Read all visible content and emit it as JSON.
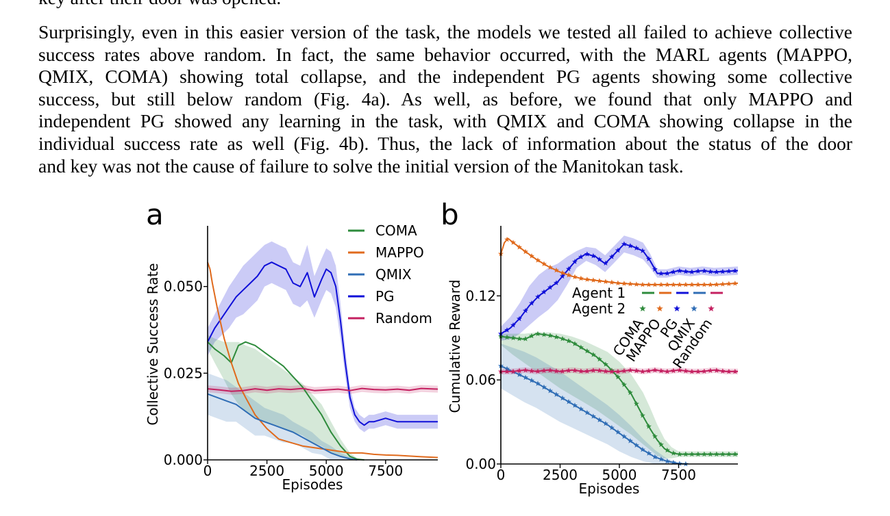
{
  "cut_line": "key after their door was opened.",
  "paragraph": [
    "Surprisingly, even in this easier version of the task, the models we tested all failed to achieve collective",
    "success rates above random. In fact, the same behavior occurred, with the MARL agents (MAPPO,",
    "QMIX, COMA) showing total collapse, and the independent PG agents showing some collective",
    "success, but still below random (Fig.  4a).  As well, as before, we found that only MAPPO and",
    "independent PG showed any learning in the task, with QMIX and COMA showing collapse in the",
    "individual success rate as well (Fig. 4b). Thus, the lack of information about the status of the door",
    "and key was not the cause of failure to solve the initial version of the Manitokan task."
  ],
  "colors": {
    "COMA": "#2e8b3c",
    "MAPPO": "#e06a1c",
    "QMIX": "#2f6db5",
    "PG": "#1010d8",
    "Random": "#c42060"
  },
  "chart_data": [
    {
      "panel_label": "a",
      "type": "line",
      "xlabel": "Episodes",
      "ylabel": "Collective Success Rate",
      "xlim": [
        0,
        9700
      ],
      "ylim": [
        0,
        0.0675
      ],
      "xticks": [
        0,
        2500,
        5000,
        7500
      ],
      "xtick_labels": [
        "0",
        "2500",
        "5000",
        "7500"
      ],
      "yticks": [
        0,
        0.025,
        0.05
      ],
      "ytick_labels": [
        "0.000",
        "0.025",
        "0.050"
      ],
      "legend": [
        "COMA",
        "MAPPO",
        "QMIX",
        "PG",
        "Random"
      ],
      "legend_position": "top-right",
      "series": [
        {
          "name": "PG",
          "x": [
            0,
            300,
            600,
            900,
            1200,
            1500,
            1800,
            2100,
            2400,
            2700,
            3000,
            3300,
            3600,
            3900,
            4200,
            4500,
            4800,
            5000,
            5200,
            5400,
            5600,
            5800,
            6000,
            6200,
            6400,
            6600,
            6800,
            7000,
            7500,
            8000,
            8500,
            9000,
            9700
          ],
          "y": [
            0.034,
            0.038,
            0.041,
            0.044,
            0.047,
            0.049,
            0.051,
            0.053,
            0.056,
            0.057,
            0.056,
            0.055,
            0.051,
            0.05,
            0.054,
            0.047,
            0.052,
            0.055,
            0.054,
            0.05,
            0.04,
            0.028,
            0.018,
            0.013,
            0.011,
            0.01,
            0.011,
            0.011,
            0.012,
            0.011,
            0.011,
            0.011,
            0.011
          ],
          "band": [
            0.004,
            0.004,
            0.005,
            0.006,
            0.006,
            0.007,
            0.007,
            0.007,
            0.006,
            0.006,
            0.006,
            0.006,
            0.006,
            0.006,
            0.008,
            0.006,
            0.006,
            0.006,
            0.006,
            0.006,
            0.005,
            0.004,
            0.003,
            0.002,
            0.002,
            0.002,
            0.002,
            0.002,
            0.002,
            0.002,
            0.002,
            0.002,
            0.002
          ]
        },
        {
          "name": "COMA",
          "x": [
            0,
            300,
            700,
            1000,
            1300,
            1600,
            2000,
            2400,
            2800,
            3200,
            3600,
            4000,
            4400,
            4800,
            5200,
            5600,
            6000,
            6300,
            6600
          ],
          "y": [
            0.034,
            0.032,
            0.03,
            0.028,
            0.033,
            0.034,
            0.033,
            0.031,
            0.029,
            0.027,
            0.024,
            0.021,
            0.017,
            0.013,
            0.008,
            0.004,
            0.001,
            0.0002,
            0.0
          ],
          "lower": [
            0.032,
            0.028,
            0.023,
            0.019,
            0.016,
            0.014,
            0.012,
            0.011,
            0.01,
            0.009,
            0.008,
            0.007,
            0.005,
            0.004,
            0.002,
            0.001,
            0.0,
            0.0,
            0.0
          ],
          "upper": [
            0.036,
            0.035,
            0.034,
            0.034,
            0.034,
            0.033,
            0.032,
            0.03,
            0.028,
            0.026,
            0.024,
            0.022,
            0.019,
            0.016,
            0.011,
            0.006,
            0.002,
            0.0005,
            0.0
          ]
        },
        {
          "name": "MAPPO",
          "x": [
            0,
            100,
            200,
            400,
            700,
            1000,
            1300,
            1600,
            2000,
            2500,
            3000,
            3500,
            4000,
            4500,
            5000,
            5500,
            6000,
            6500,
            7000,
            7500,
            8000,
            8500,
            9000,
            9700
          ],
          "y": [
            0.057,
            0.055,
            0.051,
            0.044,
            0.035,
            0.028,
            0.022,
            0.018,
            0.013,
            0.009,
            0.006,
            0.005,
            0.004,
            0.0035,
            0.003,
            0.0025,
            0.002,
            0.002,
            0.0016,
            0.0014,
            0.0013,
            0.0011,
            0.0009,
            0.0007
          ]
        },
        {
          "name": "QMIX",
          "x": [
            0,
            400,
            800,
            1200,
            1600,
            2000,
            2400,
            2800,
            3200,
            3600,
            4000,
            4400,
            4800,
            5200,
            5600,
            6000,
            6300
          ],
          "y": [
            0.019,
            0.018,
            0.017,
            0.016,
            0.014,
            0.012,
            0.011,
            0.01,
            0.009,
            0.008,
            0.0065,
            0.005,
            0.0035,
            0.002,
            0.001,
            0.0003,
            0.0
          ],
          "band": [
            0.006,
            0.006,
            0.006,
            0.005,
            0.005,
            0.005,
            0.004,
            0.004,
            0.004,
            0.003,
            0.003,
            0.003,
            0.002,
            0.002,
            0.001,
            0.0005,
            0.0
          ]
        },
        {
          "name": "Random",
          "x": [
            0,
            500,
            1000,
            1500,
            2000,
            2500,
            3000,
            3500,
            4000,
            4500,
            5000,
            5500,
            6000,
            6500,
            7000,
            7500,
            8000,
            8500,
            9000,
            9700
          ],
          "y": [
            0.0205,
            0.0202,
            0.0198,
            0.02,
            0.0205,
            0.0201,
            0.0205,
            0.0203,
            0.0206,
            0.02,
            0.0202,
            0.0204,
            0.02,
            0.0206,
            0.0203,
            0.0202,
            0.0204,
            0.0201,
            0.0206,
            0.0204
          ],
          "band": [
            0.001,
            0.001,
            0.001,
            0.001,
            0.001,
            0.001,
            0.001,
            0.001,
            0.001,
            0.001,
            0.001,
            0.001,
            0.001,
            0.001,
            0.001,
            0.001,
            0.001,
            0.001,
            0.001,
            0.001
          ]
        }
      ]
    },
    {
      "panel_label": "b",
      "type": "line",
      "xlabel": "Episodes",
      "ylabel": "Cumulative Reward",
      "xlim": [
        0,
        10000
      ],
      "ylim": [
        0,
        0.17
      ],
      "xticks": [
        0,
        2500,
        5000,
        7500
      ],
      "xtick_labels": [
        "0",
        "2500",
        "5000",
        "7500"
      ],
      "yticks": [
        0,
        0.06,
        0.12
      ],
      "ytick_labels": [
        "0.00",
        "0.06",
        "0.12"
      ],
      "legend_rows": [
        "Agent 1",
        "Agent 2"
      ],
      "legend_names": [
        "COMA",
        "MAPPO",
        "PG",
        "QMIX",
        "Random"
      ],
      "legend_position": "center-right",
      "series": [
        {
          "name": "PG",
          "x": [
            0,
            400,
            800,
            1200,
            1600,
            2000,
            2400,
            2800,
            3200,
            3600,
            4000,
            4400,
            4800,
            5200,
            5600,
            6000,
            6300,
            6600,
            7000,
            7500,
            8000,
            8500,
            9000,
            10000
          ],
          "y": [
            0.093,
            0.097,
            0.104,
            0.113,
            0.12,
            0.125,
            0.13,
            0.138,
            0.146,
            0.15,
            0.148,
            0.143,
            0.15,
            0.157,
            0.155,
            0.152,
            0.145,
            0.136,
            0.136,
            0.138,
            0.137,
            0.138,
            0.137,
            0.138
          ],
          "band": [
            0.005,
            0.008,
            0.011,
            0.014,
            0.015,
            0.015,
            0.013,
            0.01,
            0.006,
            0.005,
            0.006,
            0.006,
            0.006,
            0.006,
            0.006,
            0.006,
            0.005,
            0.003,
            0.003,
            0.003,
            0.003,
            0.003,
            0.003,
            0.003
          ]
        },
        {
          "name": "MAPPO",
          "x": [
            0,
            150,
            300,
            600,
            1000,
            1500,
            2000,
            2500,
            3000,
            3500,
            4000,
            4500,
            5000,
            6000,
            7000,
            8000,
            9000,
            10000
          ],
          "y": [
            0.15,
            0.158,
            0.161,
            0.157,
            0.152,
            0.146,
            0.141,
            0.137,
            0.134,
            0.132,
            0.131,
            0.13,
            0.129,
            0.128,
            0.128,
            0.128,
            0.128,
            0.129
          ]
        },
        {
          "name": "COMA",
          "x": [
            0,
            500,
            1000,
            1500,
            2000,
            2500,
            3000,
            3500,
            4000,
            4500,
            5000,
            5500,
            6000,
            6300,
            6600,
            6900,
            7200,
            7500,
            8000,
            8500,
            9000,
            10000
          ],
          "y": [
            0.091,
            0.09,
            0.089,
            0.093,
            0.092,
            0.09,
            0.087,
            0.082,
            0.077,
            0.07,
            0.061,
            0.05,
            0.034,
            0.025,
            0.017,
            0.011,
            0.008,
            0.007,
            0.007,
            0.007,
            0.007,
            0.007
          ],
          "lower": [
            0.085,
            0.078,
            0.072,
            0.066,
            0.06,
            0.054,
            0.049,
            0.044,
            0.039,
            0.033,
            0.027,
            0.021,
            0.014,
            0.01,
            0.006,
            0.004,
            0.004,
            0.005,
            0.005,
            0.005,
            0.005,
            0.005
          ],
          "upper": [
            0.093,
            0.093,
            0.093,
            0.094,
            0.094,
            0.093,
            0.091,
            0.088,
            0.084,
            0.08,
            0.073,
            0.064,
            0.051,
            0.04,
            0.028,
            0.018,
            0.012,
            0.009,
            0.009,
            0.009,
            0.009,
            0.009
          ]
        },
        {
          "name": "QMIX",
          "x": [
            0,
            500,
            1000,
            1500,
            2000,
            2500,
            3000,
            3500,
            4000,
            4500,
            5000,
            5500,
            6000,
            6500,
            7000,
            7500,
            7800
          ],
          "y": [
            0.07,
            0.066,
            0.062,
            0.058,
            0.053,
            0.048,
            0.043,
            0.038,
            0.033,
            0.028,
            0.022,
            0.016,
            0.01,
            0.005,
            0.002,
            0.0003,
            0.0
          ],
          "band": [
            0.016,
            0.017,
            0.018,
            0.018,
            0.018,
            0.018,
            0.017,
            0.016,
            0.015,
            0.014,
            0.013,
            0.011,
            0.008,
            0.005,
            0.002,
            0.0005,
            0.0
          ]
        },
        {
          "name": "Random",
          "x": [
            0,
            500,
            1000,
            1500,
            2000,
            2500,
            3000,
            3500,
            4000,
            4500,
            5000,
            5500,
            6000,
            6500,
            7000,
            7500,
            8000,
            8500,
            9000,
            9500,
            10000
          ],
          "y": [
            0.066,
            0.066,
            0.067,
            0.066,
            0.067,
            0.066,
            0.067,
            0.066,
            0.067,
            0.066,
            0.066,
            0.067,
            0.066,
            0.067,
            0.066,
            0.067,
            0.066,
            0.066,
            0.067,
            0.066,
            0.066
          ],
          "band": [
            0.002,
            0.002,
            0.002,
            0.002,
            0.002,
            0.002,
            0.002,
            0.002,
            0.002,
            0.002,
            0.002,
            0.002,
            0.002,
            0.002,
            0.002,
            0.002,
            0.002,
            0.002,
            0.002,
            0.002,
            0.002
          ]
        }
      ]
    }
  ]
}
